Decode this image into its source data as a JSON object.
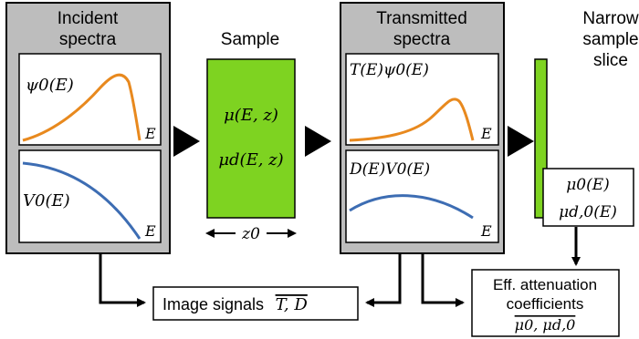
{
  "panels": {
    "incident": {
      "title_line1": "Incident",
      "title_line2": "spectra",
      "top_plot": {
        "label": "ψ0(E)",
        "axis": "E",
        "curve_color": "#e8891e"
      },
      "bottom_plot": {
        "label": "V0(E)",
        "axis": "E",
        "curve_color": "#3d6db3"
      },
      "frame_color": "#bdbdbd"
    },
    "sample": {
      "title": "Sample",
      "line1": "μ(E, z)",
      "line2": "μd(E, z)",
      "thickness": "z0",
      "fill_color": "#7ed321"
    },
    "transmitted": {
      "title_line1": "Transmitted",
      "title_line2": "spectra",
      "top_plot": {
        "label": "T(E)ψ0(E)",
        "axis": "E",
        "curve_color": "#e8891e"
      },
      "bottom_plot": {
        "label": "D(E)V0(E)",
        "axis": "E",
        "curve_color": "#3d6db3"
      }
    },
    "slice": {
      "title_line1": "Narrow",
      "title_line2": "sample",
      "title_line3": "slice",
      "line1": "μ0(E)",
      "line2": "μd,0(E)"
    }
  },
  "outputs": {
    "image_signals": {
      "text": "Image signals",
      "symbols": "T, D"
    },
    "eff_attenuation": {
      "line1": "Eff. attenuation",
      "line2": "coefficients",
      "symbols": "μ0, μd,0"
    }
  }
}
